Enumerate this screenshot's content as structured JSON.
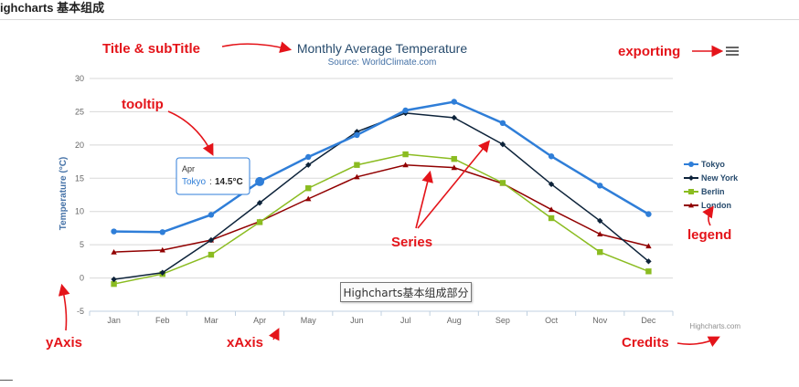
{
  "page": {
    "title": "ighcharts 基本组成",
    "caption_box": "Highcharts基本组成部分"
  },
  "colors": {
    "annotation": "#e4141a",
    "title": "#274b6d",
    "subtitle": "#4572a7",
    "axis_title": "#4572a7",
    "grid": "#d8d8d8",
    "tick_label": "#666666"
  },
  "annotations": {
    "title": "Title & subTitle",
    "exporting": "exporting",
    "tooltip": "tooltip",
    "series": "Series",
    "legend": "legend",
    "yaxis": "yAxis",
    "xaxis": "xAxis",
    "credits": "Credits"
  },
  "chart_data": {
    "type": "line",
    "title": "Monthly Average Temperature",
    "subtitle": "Source: WorldClimate.com",
    "ylabel": "Temperature (°C)",
    "xlabel": "",
    "ylim": [
      -5,
      30
    ],
    "yticks": [
      -5,
      0,
      5,
      10,
      15,
      20,
      25,
      30
    ],
    "grid": true,
    "legend_position": "right",
    "categories": [
      "Jan",
      "Feb",
      "Mar",
      "Apr",
      "May",
      "Jun",
      "Jul",
      "Aug",
      "Sep",
      "Oct",
      "Nov",
      "Dec"
    ],
    "series": [
      {
        "name": "Tokyo",
        "color": "#2f7ed8",
        "marker": "circle",
        "values": [
          7.0,
          6.9,
          9.5,
          14.5,
          18.2,
          21.5,
          25.2,
          26.5,
          23.3,
          18.3,
          13.9,
          9.6
        ]
      },
      {
        "name": "New York",
        "color": "#0d233a",
        "marker": "diamond",
        "values": [
          -0.2,
          0.8,
          5.7,
          11.3,
          17.0,
          22.0,
          24.8,
          24.1,
          20.1,
          14.1,
          8.6,
          2.5
        ]
      },
      {
        "name": "Berlin",
        "color": "#8bbc21",
        "marker": "square",
        "values": [
          -0.9,
          0.6,
          3.5,
          8.4,
          13.5,
          17.0,
          18.6,
          17.9,
          14.3,
          9.0,
          3.9,
          1.0
        ]
      },
      {
        "name": "London",
        "color": "#910000",
        "marker": "triangle",
        "values": [
          3.9,
          4.2,
          5.7,
          8.5,
          11.9,
          15.2,
          17.0,
          16.6,
          14.2,
          10.3,
          6.6,
          4.8
        ]
      }
    ],
    "tooltip": {
      "category": "Apr",
      "series": "Tokyo",
      "value": "14.5°C"
    },
    "credits": "Highcharts.com",
    "exporting_icon": "menu-icon"
  }
}
